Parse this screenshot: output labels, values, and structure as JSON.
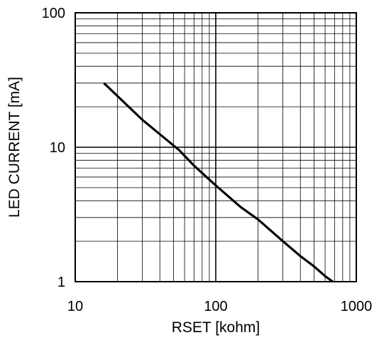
{
  "chart_data": {
    "type": "line",
    "xlabel": "RSET  [kohm]",
    "ylabel": "LED CURRENT [mA]",
    "x_scale": "log",
    "y_scale": "log",
    "xlim": [
      10,
      1000
    ],
    "ylim": [
      1,
      100
    ],
    "x_ticks": [
      "10",
      "100",
      "1000"
    ],
    "y_ticks": [
      "100",
      "10",
      "1"
    ],
    "grid": true,
    "series": [
      {
        "x": [
          16,
          20,
          30,
          40,
          55,
          70,
          100,
          150,
          200,
          300,
          400,
          500,
          600,
          680
        ],
        "y": [
          30,
          24,
          16,
          12.5,
          9.5,
          7.3,
          5.2,
          3.6,
          2.9,
          2.0,
          1.55,
          1.3,
          1.1,
          1.0
        ]
      }
    ],
    "line_color": "#000000"
  }
}
